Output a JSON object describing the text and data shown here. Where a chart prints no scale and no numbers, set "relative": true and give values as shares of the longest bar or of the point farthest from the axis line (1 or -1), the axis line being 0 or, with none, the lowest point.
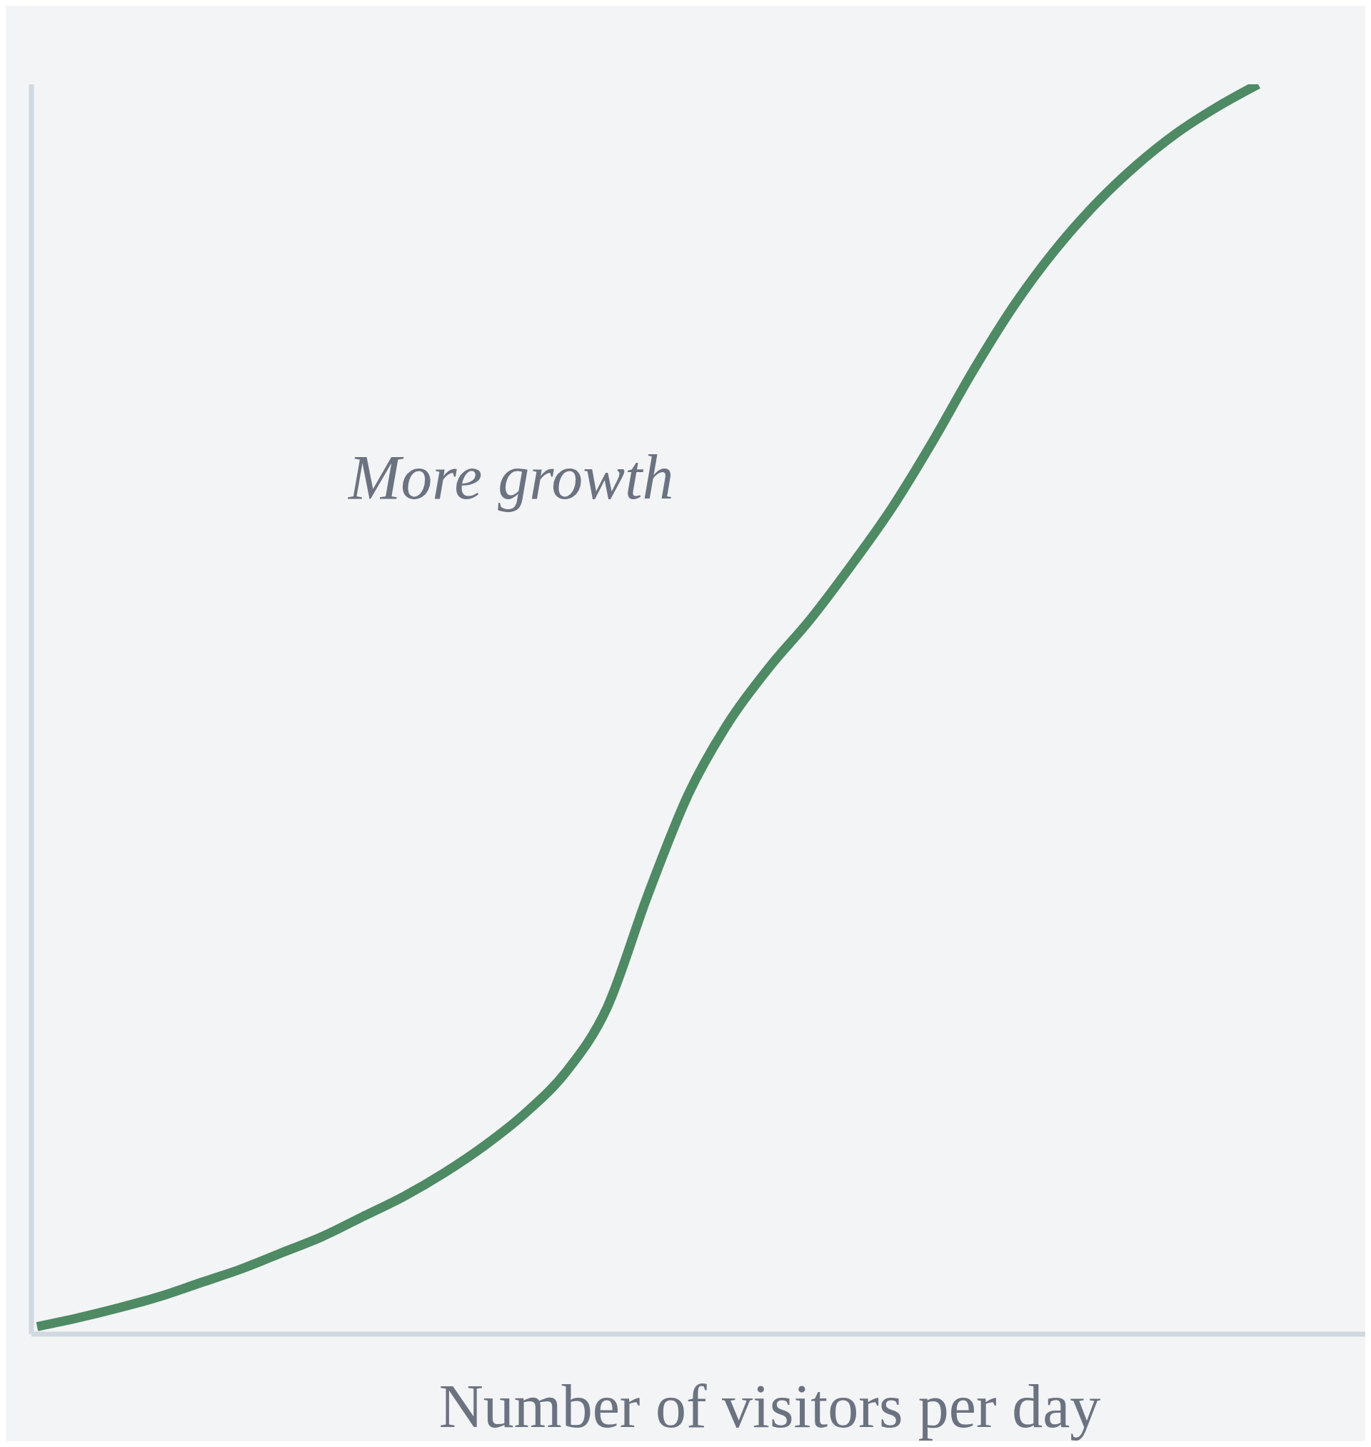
{
  "chart_data": {
    "type": "line",
    "relative": true,
    "xlabel": "Number of visitors per day",
    "annotations": [
      "More growth"
    ],
    "categories": [
      null,
      null,
      null,
      null,
      null,
      null,
      null,
      null,
      null,
      null,
      null,
      null,
      null,
      null,
      null,
      null,
      null,
      null,
      null,
      null,
      null,
      null,
      null,
      null,
      null,
      null,
      null,
      null,
      null,
      null,
      null
    ],
    "series": [
      {
        "color": "#4e8a64",
        "values": [
          0.006,
          0.013,
          0.021,
          0.03,
          0.041,
          0.052,
          0.065,
          0.078,
          0.094,
          0.11,
          0.129,
          0.151,
          0.177,
          0.21,
          0.261,
          0.351,
          0.432,
          0.49,
          0.534,
          0.572,
          0.615,
          0.661,
          0.714,
          0.771,
          0.823,
          0.867,
          0.904,
          0.935,
          0.961,
          0.982,
          1
        ]
      }
    ],
    "grid": false,
    "legend": false,
    "marker": "none",
    "line_style": "solid"
  }
}
